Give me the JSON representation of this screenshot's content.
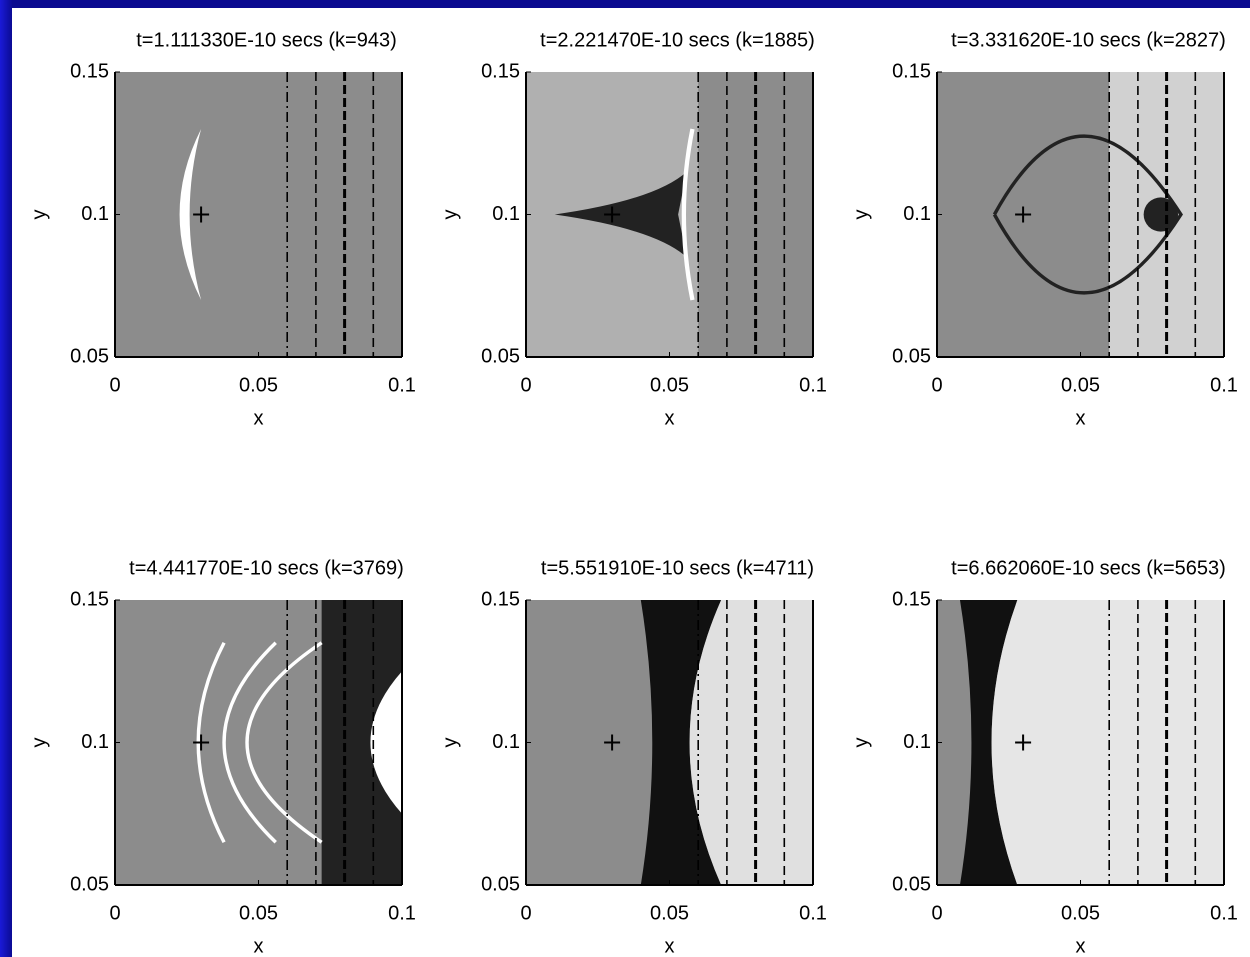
{
  "chart_data": [
    {
      "type": "image",
      "title": "t=1.111330E-10 secs (k=943)",
      "x_label": "x",
      "y_label": "y",
      "xlim": [
        0,
        0.1
      ],
      "ylim": [
        0.05,
        0.15
      ],
      "xticks": [
        0,
        0.05,
        0.1
      ],
      "yticks": [
        0.05,
        0.1,
        0.15
      ],
      "vlines": [
        0.06,
        0.07,
        0.08,
        0.09
      ],
      "marker": [
        0.03,
        0.1
      ]
    },
    {
      "type": "image",
      "title": "t=2.221470E-10 secs (k=1885)",
      "x_label": "x",
      "y_label": "y",
      "xlim": [
        0,
        0.1
      ],
      "ylim": [
        0.05,
        0.15
      ],
      "xticks": [
        0,
        0.05,
        0.1
      ],
      "yticks": [
        0.05,
        0.1,
        0.15
      ],
      "vlines": [
        0.06,
        0.07,
        0.08,
        0.09
      ],
      "marker": [
        0.03,
        0.1
      ]
    },
    {
      "type": "image",
      "title": "t=3.331620E-10 secs (k=2827)",
      "x_label": "x",
      "y_label": "y",
      "xlim": [
        0,
        0.1
      ],
      "ylim": [
        0.05,
        0.15
      ],
      "xticks": [
        0,
        0.05,
        0.1
      ],
      "yticks": [
        0.05,
        0.1,
        0.15
      ],
      "vlines": [
        0.06,
        0.07,
        0.08,
        0.09
      ],
      "marker": [
        0.03,
        0.1
      ]
    },
    {
      "type": "image",
      "title": "t=4.441770E-10 secs (k=3769)",
      "x_label": "x",
      "y_label": "y",
      "xlim": [
        0,
        0.1
      ],
      "ylim": [
        0.05,
        0.15
      ],
      "xticks": [
        0,
        0.05,
        0.1
      ],
      "yticks": [
        0.05,
        0.1,
        0.15
      ],
      "vlines": [
        0.06,
        0.07,
        0.08,
        0.09
      ],
      "marker": [
        0.03,
        0.1
      ]
    },
    {
      "type": "image",
      "title": "t=5.551910E-10 secs (k=4711)",
      "x_label": "x",
      "y_label": "y",
      "xlim": [
        0,
        0.1
      ],
      "ylim": [
        0.05,
        0.15
      ],
      "xticks": [
        0,
        0.05,
        0.1
      ],
      "yticks": [
        0.05,
        0.1,
        0.15
      ],
      "vlines": [
        0.06,
        0.07,
        0.08,
        0.09
      ],
      "marker": [
        0.03,
        0.1
      ]
    },
    {
      "type": "image",
      "title": "t=6.662060E-10 secs (k=5653)",
      "x_label": "x",
      "y_label": "y",
      "xlim": [
        0,
        0.1
      ],
      "ylim": [
        0.05,
        0.15
      ],
      "xticks": [
        0,
        0.05,
        0.1
      ],
      "yticks": [
        0.05,
        0.1,
        0.15
      ],
      "vlines": [
        0.06,
        0.07,
        0.08,
        0.09
      ],
      "marker": [
        0.03,
        0.1
      ]
    }
  ]
}
